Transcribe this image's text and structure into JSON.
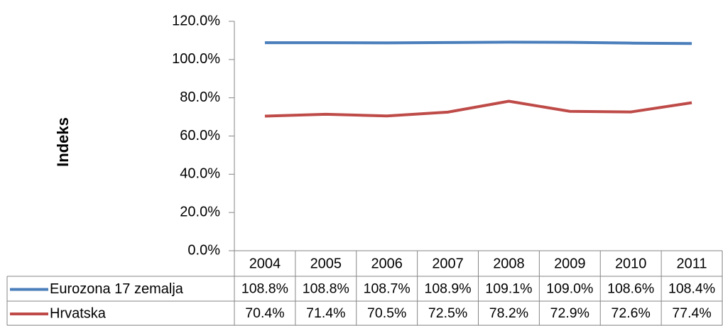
{
  "chart_data": {
    "type": "line",
    "y_label": "Indeks",
    "categories": [
      "2004",
      "2005",
      "2006",
      "2007",
      "2008",
      "2009",
      "2010",
      "2011"
    ],
    "series": [
      {
        "name": "Eurozona 17 zemalja",
        "color": "#4a7ebb",
        "values": [
          108.8,
          108.8,
          108.7,
          108.9,
          109.1,
          109.0,
          108.6,
          108.4
        ],
        "value_labels": [
          "108.8%",
          "108.8%",
          "108.7%",
          "108.9%",
          "109.1%",
          "109.0%",
          "108.6%",
          "108.4%"
        ]
      },
      {
        "name": "Hrvatska",
        "color": "#be4b48",
        "values": [
          70.4,
          71.4,
          70.5,
          72.5,
          78.2,
          72.9,
          72.6,
          77.4
        ],
        "value_labels": [
          "70.4%",
          "71.4%",
          "70.5%",
          "72.5%",
          "78.2%",
          "72.9%",
          "72.6%",
          "77.4%"
        ]
      }
    ],
    "ylim": [
      0,
      120
    ],
    "yticks": [
      {
        "value": 0,
        "label": "0.0%"
      },
      {
        "value": 20,
        "label": "20.0%"
      },
      {
        "value": 40,
        "label": "40.0%"
      },
      {
        "value": 60,
        "label": "60.0%"
      },
      {
        "value": 80,
        "label": "80.0%"
      },
      {
        "value": 100,
        "label": "100.0%"
      },
      {
        "value": 120,
        "label": "120.0%"
      }
    ],
    "grid": false,
    "data_table": true
  }
}
